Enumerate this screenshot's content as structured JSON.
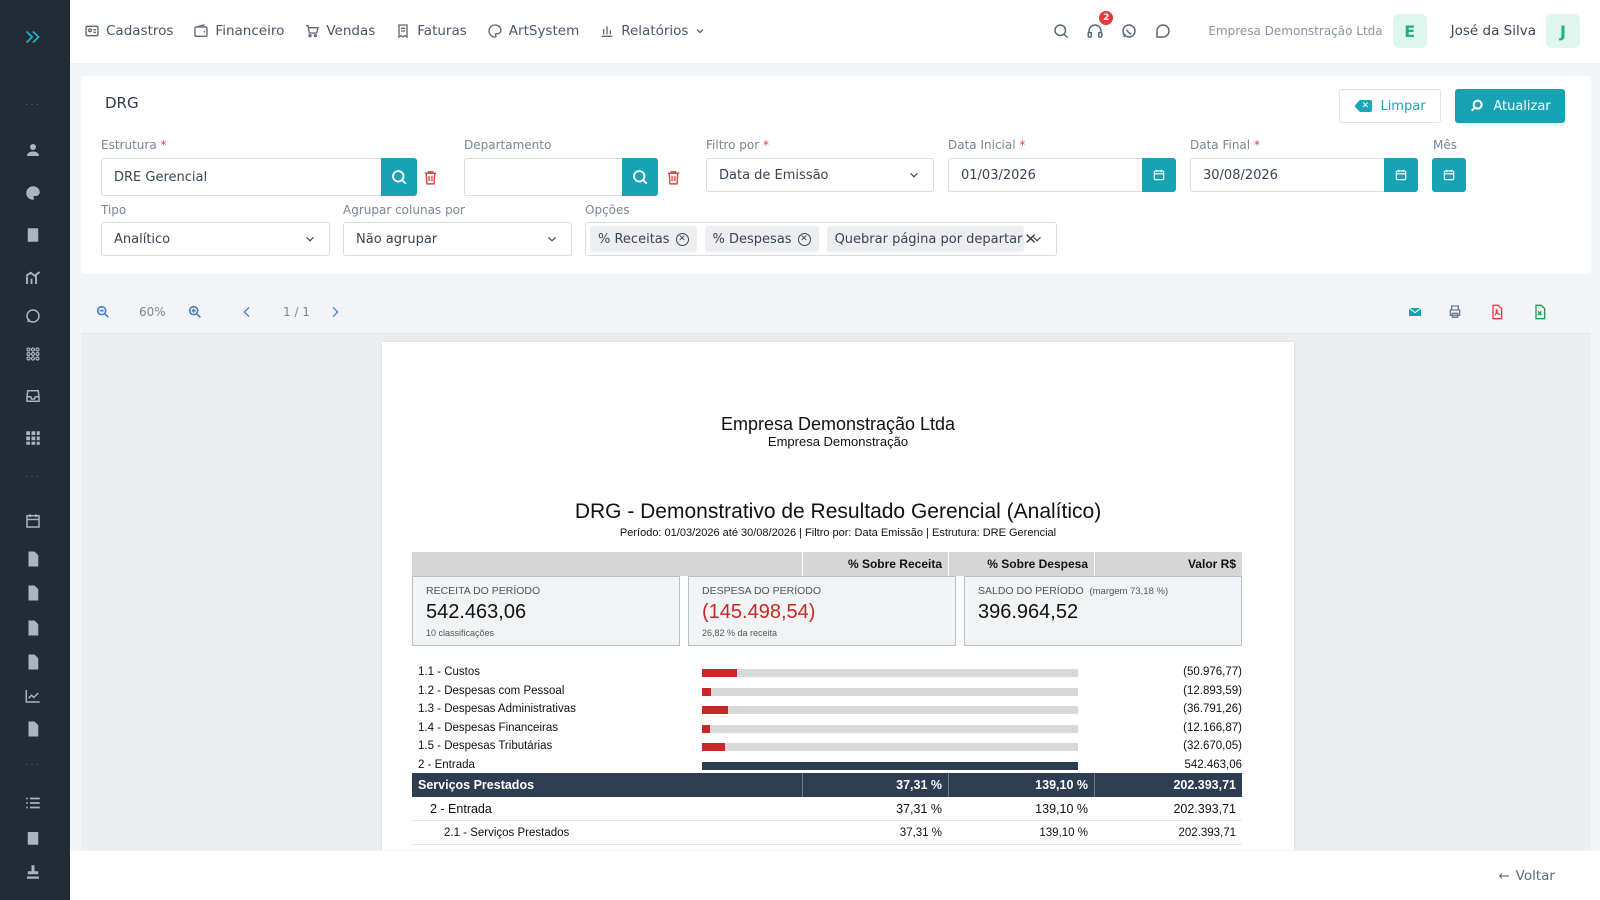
{
  "topbar": {
    "menu": [
      {
        "label": "Cadastros",
        "icon": "id-card-icon"
      },
      {
        "label": "Financeiro",
        "icon": "wallet-icon"
      },
      {
        "label": "Vendas",
        "icon": "cart-icon"
      },
      {
        "label": "Faturas",
        "icon": "receipt-icon"
      },
      {
        "label": "ArtSystem",
        "icon": "palette-icon"
      },
      {
        "label": "Relatórios",
        "icon": "bar-chart-icon"
      }
    ],
    "notification_count": "2",
    "company": "Empresa Demonstração Ltda",
    "company_initial": "E",
    "user": "José da Silva",
    "user_initial": "J"
  },
  "filters": {
    "title": "DRG",
    "clear_label": "Limpar",
    "update_label": "Atualizar",
    "estrutura_label": "Estrutura",
    "estrutura_value": "DRE Gerencial",
    "departamento_label": "Departamento",
    "departamento_value": "",
    "filtro_label": "Filtro por",
    "filtro_value": "Data de Emissão",
    "data_inicial_label": "Data Inicial",
    "data_inicial_value": "01/03/2026",
    "data_final_label": "Data Final",
    "data_final_value": "30/08/2026",
    "mes_label": "Mês",
    "tipo_label": "Tipo",
    "tipo_value": "Analítico",
    "agrupar_label": "Agrupar colunas por",
    "agrupar_value": "Não agrupar",
    "opcoes_label": "Opções",
    "opcoes": [
      "% Receitas",
      "% Despesas",
      "Quebrar página por departar"
    ]
  },
  "viewer": {
    "zoom": "60%",
    "page_indicator": "1 / 1"
  },
  "report": {
    "company": "Empresa Demonstração Ltda",
    "company_sub": "Empresa Demonstração",
    "title": "DRG - Demonstrativo de Resultado Gerencial (Analítico)",
    "period_line": "Período: 01/03/2026 até 30/08/2026 | Filtro por: Data Emissão | Estrutura: DRE Gerencial",
    "col_receita": "% Sobre Receita",
    "col_despesa": "% Sobre Despesa",
    "col_valor": "Valor R$",
    "summary": {
      "receita_label": "RECEITA DO PERÍODO",
      "receita_value": "542.463,06",
      "receita_note": "10 classificações",
      "despesa_label": "DESPESA DO PERÍODO",
      "despesa_value": "(145.498,54)",
      "despesa_note": "26,82 % da receita",
      "saldo_label": "SALDO DO PERÍODO",
      "saldo_margin": "(margem 73,18 %)",
      "saldo_value": "396.964,52"
    },
    "lines": [
      {
        "name": "1.1 - Custos",
        "value": "(50.976,77)",
        "ratio": 0.094
      },
      {
        "name": "1.2 - Despesas com Pessoal",
        "value": "(12.893,59)",
        "ratio": 0.024
      },
      {
        "name": "1.3 - Despesas Administrativas",
        "value": "(36.791,26)",
        "ratio": 0.068
      },
      {
        "name": "1.4 - Despesas Financeiras",
        "value": "(12.166,87)",
        "ratio": 0.022
      },
      {
        "name": "1.5 - Despesas Tributárias",
        "value": "(32.670,05)",
        "ratio": 0.06
      },
      {
        "name": "2 - Entrada",
        "value": "542.463,06",
        "ratio": 1.0
      }
    ],
    "band": {
      "name": "Serviços Prestados",
      "receita": "37,31 %",
      "despesa": "139,10 %",
      "valor": "202.393,71"
    },
    "rows": [
      {
        "name": "2 - Entrada",
        "receita": "37,31 %",
        "despesa": "139,10 %",
        "valor": "202.393,71"
      },
      {
        "name": "2.1 - Serviços Prestados",
        "receita": "37,31 %",
        "despesa": "139,10 %",
        "valor": "202.393,71"
      }
    ]
  },
  "footer": {
    "back_label": "Voltar"
  }
}
